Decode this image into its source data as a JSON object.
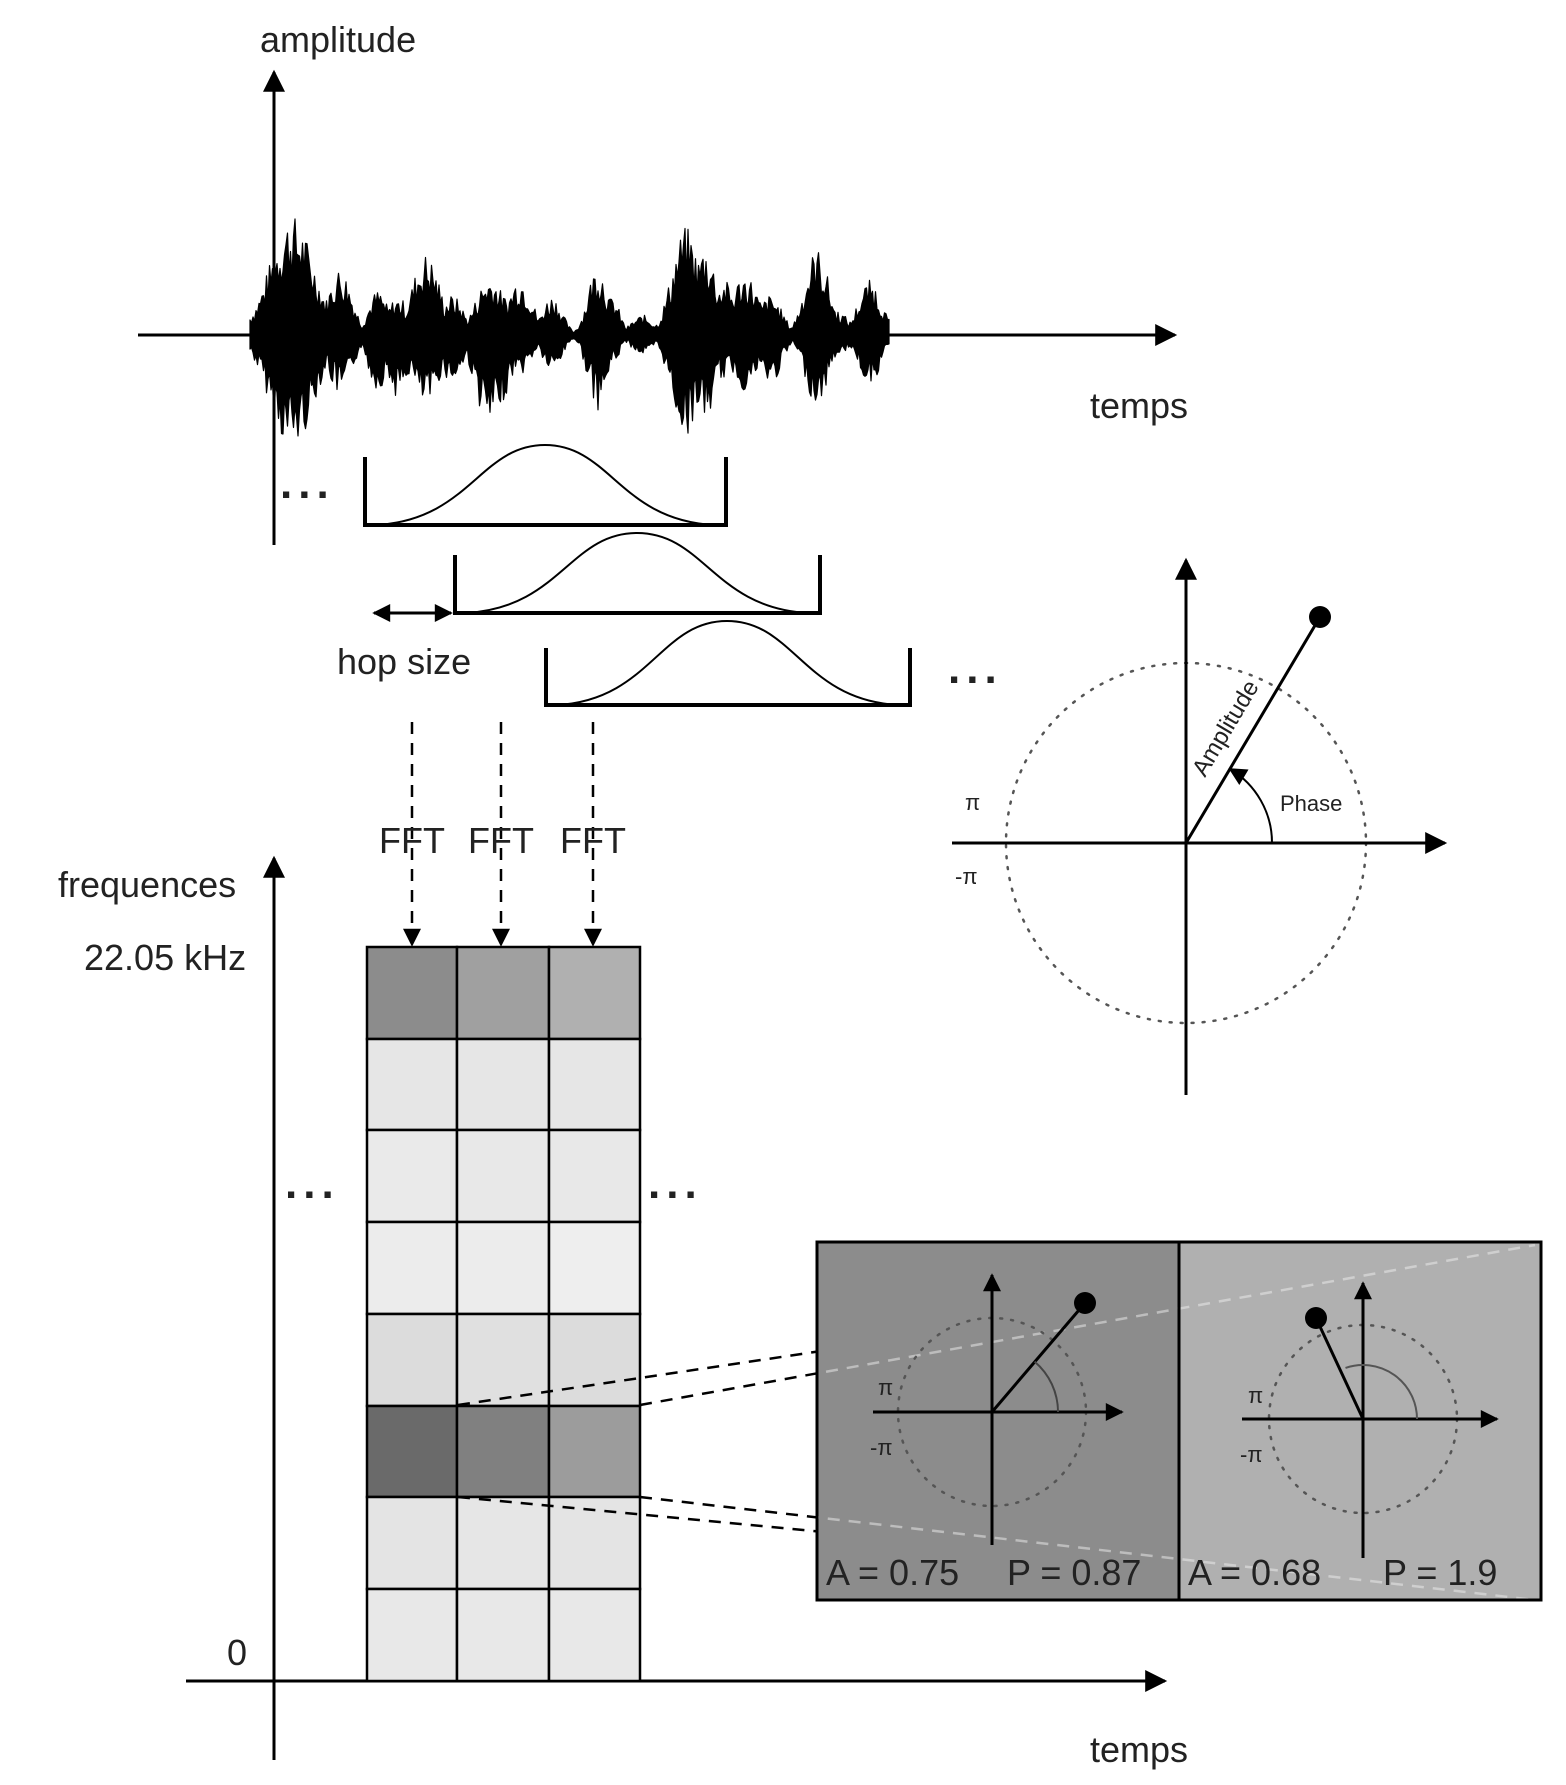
{
  "signal": {
    "y_label": "amplitude",
    "x_label": "temps"
  },
  "windows": {
    "hop_label": "hop size",
    "ellipsis": "...",
    "fft_labels": [
      "FFT",
      "FFT",
      "FFT"
    ]
  },
  "polar": {
    "amplitude_label": "Amplitude",
    "phase_label": "Phase",
    "pi_label": "π",
    "neg_pi_label": "-π"
  },
  "spectrogram": {
    "y_label": "frequences",
    "y_max_label": "22.05 kHz",
    "y_min_label": "0",
    "x_label": "temps",
    "ellipsis": "...",
    "grid_colors": [
      [
        "#8c8c8c",
        "#a0a0a0",
        "#b0b0b0"
      ],
      [
        "#e6e6e6",
        "#e6e6e6",
        "#e6e6e6"
      ],
      [
        "#eaeaea",
        "#e8e8e8",
        "#e8e8e8"
      ],
      [
        "#ececec",
        "#ececec",
        "#eeeeee"
      ],
      [
        "#dcdcdc",
        "#e0e0e0",
        "#dcdcdc"
      ],
      [
        "#6a6a6a",
        "#808080",
        "#9c9c9c"
      ],
      [
        "#e4e4e4",
        "#e6e6e6",
        "#e4e4e4"
      ],
      [
        "#e8e8e8",
        "#e8e8e8",
        "#e8e8e8"
      ]
    ]
  },
  "zoom": {
    "panels": [
      {
        "amplitude_text": "A = 0.75",
        "phase_text": "P = 0.87",
        "amplitude": 0.75,
        "phase": 0.87,
        "background": "#8c8c8c"
      },
      {
        "amplitude_text": "A = 0.68",
        "phase_text": "P = 1.9",
        "amplitude": 0.68,
        "phase": 1.9,
        "background": "#b0b0b0"
      }
    ],
    "pi_label": "π",
    "neg_pi_label": "-π"
  }
}
